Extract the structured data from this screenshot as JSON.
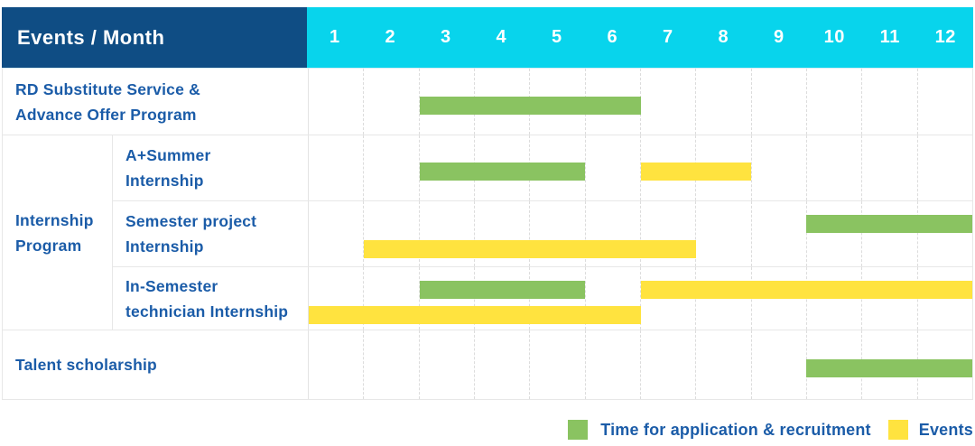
{
  "colors": {
    "navy": "#0f4d84",
    "cyan": "#08d4ec",
    "green": "#8ac361",
    "yellow": "#ffe33f",
    "label_blue": "#1b5ca8"
  },
  "chart_data": {
    "type": "gantt",
    "corner_label": "Events / Month",
    "x_axis": {
      "label": "Month",
      "range": [
        1,
        12
      ]
    },
    "x_ticks": [
      "1",
      "2",
      "3",
      "4",
      "5",
      "6",
      "7",
      "8",
      "9",
      "10",
      "11",
      "12"
    ],
    "bar_types": {
      "application": {
        "label": "Time for application & recruitment",
        "color": "#8ac361"
      },
      "event": {
        "label": "Events",
        "color": "#ffe33f"
      }
    },
    "group": {
      "label_lines": [
        "Internship",
        "Program"
      ],
      "member_rows": [
        1,
        2,
        3
      ]
    },
    "rows": [
      {
        "label_lines": [
          "RD Substitute Service &",
          "Advance Offer Program"
        ],
        "bars": [
          {
            "type": "application",
            "start_month": 3,
            "end_month": 6,
            "band": "single"
          }
        ]
      },
      {
        "label_lines": [
          "A+Summer",
          "Internship"
        ],
        "bars": [
          {
            "type": "application",
            "start_month": 3,
            "end_month": 5,
            "band": "single"
          },
          {
            "type": "event",
            "start_month": 7,
            "end_month": 8,
            "band": "single"
          }
        ]
      },
      {
        "label_lines": [
          "Semester project",
          "Internship"
        ],
        "bars": [
          {
            "type": "application",
            "start_month": 10,
            "end_month": 12,
            "band": "top"
          },
          {
            "type": "event",
            "start_month": 2,
            "end_month": 7,
            "band": "bottom"
          }
        ]
      },
      {
        "label_lines": [
          "In-Semester",
          "technician Internship"
        ],
        "bars": [
          {
            "type": "application",
            "start_month": 3,
            "end_month": 5,
            "band": "top"
          },
          {
            "type": "event",
            "start_month": 7,
            "end_month": 12,
            "band": "top"
          },
          {
            "type": "event",
            "start_month": 1,
            "end_month": 6,
            "band": "bottom"
          }
        ]
      },
      {
        "label_lines": [
          "Talent scholarship"
        ],
        "bars": [
          {
            "type": "application",
            "start_month": 10,
            "end_month": 12,
            "band": "single"
          }
        ]
      }
    ],
    "legend": [
      "Time for application & recruitment",
      "Events"
    ],
    "legend_position": "bottom-right",
    "grid": "vertical-dashed"
  }
}
